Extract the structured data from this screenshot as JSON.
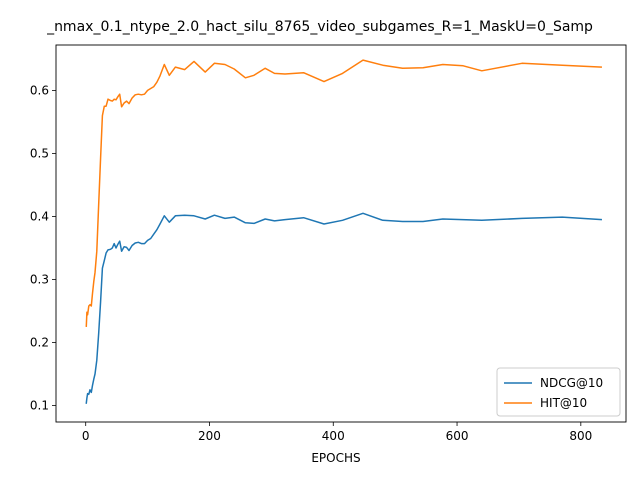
{
  "chart_data": {
    "type": "line",
    "title": "_nmax_0.1_ntype_2.0_hact_silu_8765_video_subgames_R=1_MaskU=0_Samp",
    "xlabel": "EPOCHS",
    "ylabel": "",
    "xlim": [
      -48,
      873
    ],
    "ylim": [
      0.074,
      0.672
    ],
    "xticks": [
      0,
      200,
      400,
      600,
      800
    ],
    "yticks": [
      0.1,
      0.2,
      0.3,
      0.4,
      0.5,
      0.6
    ],
    "xtick_labels": [
      "0",
      "200",
      "400",
      "600",
      "800"
    ],
    "ytick_labels": [
      "0.1",
      "0.2",
      "0.3",
      "0.4",
      "0.5",
      "0.6"
    ],
    "grid": false,
    "legend_position": "lower-right",
    "colors": {
      "NDCG@10": "#1f77b4",
      "HIT@10": "#ff7f0e"
    },
    "series": [
      {
        "name": "NDCG@10",
        "points": [
          [
            1,
            0.104
          ],
          [
            2,
            0.112
          ],
          [
            3,
            0.119
          ],
          [
            5,
            0.118
          ],
          [
            7,
            0.125
          ],
          [
            9,
            0.121
          ],
          [
            11,
            0.132
          ],
          [
            13,
            0.142
          ],
          [
            15,
            0.15
          ],
          [
            18,
            0.172
          ],
          [
            21,
            0.215
          ],
          [
            24,
            0.265
          ],
          [
            27,
            0.318
          ],
          [
            30,
            0.33
          ],
          [
            33,
            0.342
          ],
          [
            36,
            0.347
          ],
          [
            40,
            0.348
          ],
          [
            43,
            0.35
          ],
          [
            46,
            0.357
          ],
          [
            49,
            0.35
          ],
          [
            52,
            0.356
          ],
          [
            55,
            0.361
          ],
          [
            58,
            0.345
          ],
          [
            62,
            0.352
          ],
          [
            66,
            0.351
          ],
          [
            70,
            0.346
          ],
          [
            75,
            0.354
          ],
          [
            80,
            0.358
          ],
          [
            85,
            0.359
          ],
          [
            90,
            0.357
          ],
          [
            95,
            0.357
          ],
          [
            100,
            0.362
          ],
          [
            105,
            0.365
          ],
          [
            110,
            0.372
          ],
          [
            115,
            0.379
          ],
          [
            120,
            0.388
          ],
          [
            127,
            0.401
          ],
          [
            135,
            0.391
          ],
          [
            145,
            0.401
          ],
          [
            160,
            0.402
          ],
          [
            175,
            0.401
          ],
          [
            193,
            0.396
          ],
          [
            208,
            0.402
          ],
          [
            225,
            0.397
          ],
          [
            240,
            0.399
          ],
          [
            258,
            0.39
          ],
          [
            272,
            0.389
          ],
          [
            290,
            0.396
          ],
          [
            305,
            0.393
          ],
          [
            322,
            0.395
          ],
          [
            352,
            0.398
          ],
          [
            385,
            0.388
          ],
          [
            415,
            0.394
          ],
          [
            448,
            0.405
          ],
          [
            480,
            0.394
          ],
          [
            512,
            0.392
          ],
          [
            545,
            0.392
          ],
          [
            577,
            0.396
          ],
          [
            640,
            0.394
          ],
          [
            705,
            0.397
          ],
          [
            770,
            0.399
          ],
          [
            833,
            0.395
          ]
        ]
      },
      {
        "name": "HIT@10",
        "points": [
          [
            1,
            0.226
          ],
          [
            2,
            0.248
          ],
          [
            3,
            0.244
          ],
          [
            5,
            0.258
          ],
          [
            7,
            0.26
          ],
          [
            9,
            0.258
          ],
          [
            11,
            0.278
          ],
          [
            13,
            0.297
          ],
          [
            15,
            0.311
          ],
          [
            18,
            0.345
          ],
          [
            21,
            0.42
          ],
          [
            24,
            0.493
          ],
          [
            27,
            0.56
          ],
          [
            30,
            0.575
          ],
          [
            33,
            0.575
          ],
          [
            36,
            0.586
          ],
          [
            40,
            0.584
          ],
          [
            43,
            0.583
          ],
          [
            46,
            0.586
          ],
          [
            49,
            0.585
          ],
          [
            52,
            0.59
          ],
          [
            55,
            0.594
          ],
          [
            58,
            0.574
          ],
          [
            62,
            0.58
          ],
          [
            66,
            0.583
          ],
          [
            70,
            0.579
          ],
          [
            75,
            0.588
          ],
          [
            80,
            0.593
          ],
          [
            85,
            0.594
          ],
          [
            90,
            0.593
          ],
          [
            95,
            0.594
          ],
          [
            100,
            0.6
          ],
          [
            105,
            0.603
          ],
          [
            110,
            0.606
          ],
          [
            115,
            0.613
          ],
          [
            120,
            0.623
          ],
          [
            127,
            0.641
          ],
          [
            135,
            0.624
          ],
          [
            145,
            0.637
          ],
          [
            160,
            0.633
          ],
          [
            175,
            0.646
          ],
          [
            193,
            0.629
          ],
          [
            208,
            0.643
          ],
          [
            225,
            0.641
          ],
          [
            240,
            0.634
          ],
          [
            258,
            0.62
          ],
          [
            272,
            0.624
          ],
          [
            290,
            0.635
          ],
          [
            305,
            0.627
          ],
          [
            322,
            0.626
          ],
          [
            352,
            0.628
          ],
          [
            385,
            0.614
          ],
          [
            415,
            0.627
          ],
          [
            448,
            0.648
          ],
          [
            480,
            0.64
          ],
          [
            512,
            0.635
          ],
          [
            545,
            0.636
          ],
          [
            577,
            0.641
          ],
          [
            610,
            0.639
          ],
          [
            640,
            0.631
          ],
          [
            705,
            0.643
          ],
          [
            770,
            0.64
          ],
          [
            833,
            0.637
          ]
        ]
      }
    ]
  }
}
